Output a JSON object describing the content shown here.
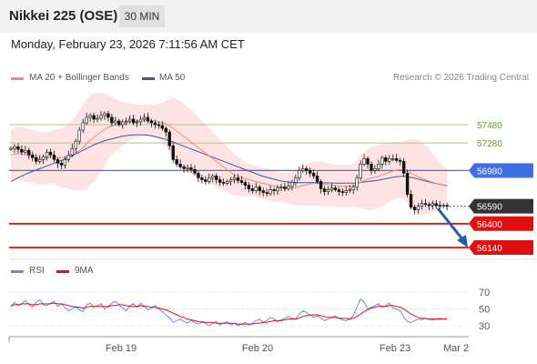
{
  "header": {
    "title": "Nikkei 225 (OSE)",
    "timeframe": "30 MIN",
    "datetime": "Monday, February 23, 2026 7:11:56 AM CET"
  },
  "legend": {
    "ma20": "MA 20 + Bollinger Bands",
    "ma50": "MA 50",
    "credit": "Research © 2026 Trading Central",
    "rsi": "RSI",
    "ma9": "9MA"
  },
  "colors": {
    "ma20": "#f08a80",
    "ma50": "#3a5a9a",
    "bollinger_fill": "#fde0e0",
    "resistance": "#a8cc78",
    "pivot": "#3f6fe0",
    "support": "#e01010",
    "current_price": "#333333",
    "rsi": "#6a8be0",
    "ma9": "#e01010",
    "forecast_arrow": "#2a5aa8"
  },
  "chart_data": [
    {
      "type": "candlestick",
      "title": "Nikkei 225 (OSE)",
      "x_labels": [
        "Feb 19",
        "Feb 20",
        "Feb 23",
        "Mar 2"
      ],
      "levels": [
        {
          "value": 57480,
          "label": "57480",
          "kind": "resistance"
        },
        {
          "value": 57280,
          "label": "57280",
          "kind": "resistance"
        },
        {
          "value": 56980,
          "label": "56980",
          "kind": "pivot"
        },
        {
          "value": 56590,
          "label": "56590",
          "kind": "current"
        },
        {
          "value": 56400,
          "label": "56400",
          "kind": "support"
        },
        {
          "value": 56140,
          "label": "56140",
          "kind": "support"
        }
      ],
      "close": [
        57220,
        57240,
        57210,
        57180,
        57200,
        57150,
        57120,
        57080,
        57100,
        57130,
        57180,
        57150,
        57100,
        57060,
        57040,
        57100,
        57150,
        57220,
        57300,
        57420,
        57500,
        57560,
        57580,
        57540,
        57550,
        57580,
        57600,
        57560,
        57500,
        57520,
        57480,
        57510,
        57520,
        57540,
        57500,
        57510,
        57540,
        57560,
        57520,
        57500,
        57480,
        57470,
        57440,
        57400,
        57250,
        57100,
        57050,
        57020,
        57000,
        57010,
        56990,
        56950,
        56900,
        56880,
        56860,
        56900,
        56920,
        56880,
        56850,
        56840,
        56860,
        56880,
        56900,
        56870,
        56850,
        56820,
        56780,
        56760,
        56800,
        56760,
        56740,
        56730,
        56770,
        56760,
        56790,
        56800,
        56780,
        56810,
        56850,
        56900,
        56980,
        57000,
        56980,
        56950,
        56920,
        56860,
        56780,
        56750,
        56770,
        56790,
        56770,
        56750,
        56740,
        56760,
        56770,
        56800,
        56900,
        57050,
        57110,
        57050,
        56980,
        57000,
        57050,
        57120,
        57080,
        57110,
        57110,
        57090,
        57080,
        56950,
        56720,
        56580,
        56550,
        56590,
        56620,
        56610,
        56600,
        56620,
        56600,
        56590,
        56600,
        56590
      ],
      "ma20": [
        57150,
        57160,
        57165,
        57160,
        57150,
        57140,
        57130,
        57120,
        57115,
        57115,
        57120,
        57125,
        57125,
        57120,
        57120,
        57125,
        57135,
        57150,
        57170,
        57200,
        57230,
        57270,
        57310,
        57340,
        57370,
        57400,
        57430,
        57450,
        57465,
        57475,
        57480,
        57490,
        57500,
        57510,
        57515,
        57520,
        57525,
        57530,
        57530,
        57525,
        57520,
        57510,
        57500,
        57490,
        57470,
        57440,
        57410,
        57380,
        57350,
        57320,
        57290,
        57260,
        57230,
        57200,
        57170,
        57140,
        57110,
        57080,
        57050,
        57020,
        56990,
        56960,
        56935,
        56915,
        56900,
        56890,
        56880,
        56870,
        56860,
        56850,
        56840,
        56830,
        56820,
        56810,
        56805,
        56800,
        56795,
        56790,
        56790,
        56795,
        56805,
        56815,
        56825,
        56835,
        56840,
        56840,
        56835,
        56830,
        56825,
        56820,
        56815,
        56810,
        56810,
        56810,
        56810,
        56815,
        56830,
        56850,
        56870,
        56885,
        56895,
        56905,
        56915,
        56930,
        56945,
        56960,
        56975,
        56985,
        56990,
        56985,
        56970,
        56950,
        56930,
        56910,
        56895,
        56880,
        56865,
        56850,
        56840,
        56830,
        56820,
        56810
      ],
      "ma50": [
        56860,
        56880,
        56900,
        56920,
        56940,
        56955,
        56970,
        56985,
        57000,
        57015,
        57030,
        57045,
        57060,
        57075,
        57090,
        57105,
        57120,
        57140,
        57160,
        57180,
        57200,
        57220,
        57240,
        57260,
        57275,
        57290,
        57305,
        57315,
        57325,
        57335,
        57345,
        57355,
        57360,
        57365,
        57368,
        57370,
        57370,
        57368,
        57365,
        57360,
        57350,
        57340,
        57330,
        57320,
        57305,
        57290,
        57275,
        57260,
        57245,
        57230,
        57215,
        57200,
        57185,
        57170,
        57155,
        57140,
        57125,
        57110,
        57095,
        57080,
        57065,
        57050,
        57035,
        57020,
        57005,
        56990,
        56975,
        56960,
        56945,
        56930,
        56915,
        56905,
        56895,
        56885,
        56875,
        56865,
        56860,
        56855,
        56850,
        56848,
        56848,
        56848,
        56848,
        56848,
        56848,
        56848,
        56847,
        56846,
        56845,
        56844,
        56843,
        56842,
        56842,
        56842,
        56842,
        56843,
        56845,
        56850,
        56855,
        56860,
        56865,
        56870,
        56875,
        56882,
        56890,
        56898,
        56906,
        56912,
        56916,
        56916,
        56912,
        56905,
        56896,
        56886,
        56876,
        56866,
        56856,
        56846,
        56838,
        56830,
        56822,
        56815
      ],
      "bb_upper": [
        57420,
        57440,
        57450,
        57450,
        57440,
        57430,
        57420,
        57410,
        57405,
        57400,
        57400,
        57410,
        57420,
        57430,
        57440,
        57460,
        57490,
        57530,
        57580,
        57640,
        57700,
        57760,
        57800,
        57820,
        57830,
        57830,
        57820,
        57800,
        57780,
        57760,
        57740,
        57730,
        57720,
        57710,
        57705,
        57700,
        57700,
        57700,
        57700,
        57700,
        57700,
        57710,
        57720,
        57740,
        57760,
        57770,
        57760,
        57740,
        57710,
        57680,
        57640,
        57600,
        57560,
        57520,
        57480,
        57440,
        57400,
        57360,
        57320,
        57280,
        57240,
        57200,
        57160,
        57130,
        57100,
        57070,
        57050,
        57040,
        57030,
        57020,
        57010,
        57000,
        56990,
        56980,
        56970,
        56960,
        56955,
        56960,
        56970,
        56990,
        57010,
        57030,
        57050,
        57070,
        57080,
        57080,
        57075,
        57070,
        57060,
        57050,
        57040,
        57040,
        57040,
        57040,
        57040,
        57050,
        57080,
        57130,
        57180,
        57220,
        57240,
        57250,
        57260,
        57270,
        57280,
        57285,
        57290,
        57290,
        57290,
        57300,
        57310,
        57320,
        57320,
        57310,
        57290,
        57260,
        57220,
        57170,
        57120,
        57070,
        57030,
        57000
      ],
      "bb_lower": [
        56880,
        56880,
        56880,
        56870,
        56860,
        56850,
        56840,
        56830,
        56825,
        56830,
        56840,
        56840,
        56830,
        56810,
        56800,
        56790,
        56780,
        56770,
        56760,
        56760,
        56760,
        56780,
        56820,
        56860,
        56910,
        56970,
        57040,
        57100,
        57150,
        57190,
        57220,
        57250,
        57280,
        57310,
        57325,
        57340,
        57350,
        57360,
        57360,
        57350,
        57340,
        57310,
        57280,
        57240,
        57180,
        57110,
        57060,
        57020,
        56990,
        56960,
        56940,
        56920,
        56900,
        56880,
        56860,
        56840,
        56820,
        56800,
        56780,
        56760,
        56740,
        56720,
        56710,
        56700,
        56700,
        56700,
        56700,
        56700,
        56690,
        56680,
        56670,
        56660,
        56650,
        56640,
        56640,
        56640,
        56635,
        56620,
        56610,
        56600,
        56600,
        56600,
        56600,
        56600,
        56600,
        56600,
        56595,
        56590,
        56590,
        56590,
        56590,
        56580,
        56580,
        56580,
        56580,
        56580,
        56580,
        56570,
        56560,
        56550,
        56550,
        56560,
        56570,
        56590,
        56610,
        56635,
        56660,
        56680,
        56690,
        56670,
        56630,
        56580,
        56540,
        56510,
        56500,
        56500,
        56510,
        56530,
        56560,
        56590,
        56610,
        56620
      ]
    },
    {
      "type": "line",
      "series_names": [
        "RSI",
        "9MA"
      ],
      "y_ticks": [
        70,
        50,
        30
      ],
      "ylim": [
        20,
        80
      ],
      "rsi": [
        52,
        58,
        54,
        56,
        60,
        55,
        52,
        58,
        61,
        55,
        54,
        57,
        59,
        53,
        56,
        52,
        48,
        50,
        53,
        49,
        47,
        55,
        57,
        52,
        54,
        56,
        50,
        53,
        57,
        59,
        55,
        51,
        48,
        54,
        56,
        52,
        57,
        53,
        49,
        51,
        54,
        50,
        47,
        43,
        40,
        34,
        36,
        38,
        35,
        33,
        36,
        34,
        32,
        34,
        33,
        30,
        33,
        35,
        31,
        33,
        35,
        31,
        33,
        30,
        32,
        34,
        31,
        33,
        36,
        38,
        34,
        36,
        40,
        38,
        35,
        37,
        39,
        41,
        39,
        38,
        44,
        48,
        46,
        43,
        40,
        42,
        39,
        36,
        38,
        40,
        42,
        39,
        37,
        36,
        38,
        42,
        52,
        62,
        58,
        50,
        52,
        54,
        56,
        52,
        54,
        57,
        51,
        50,
        48,
        40,
        35,
        34,
        36,
        38,
        37,
        39,
        38,
        37,
        38,
        39,
        38,
        39
      ],
      "ma9": [
        54,
        55,
        55,
        56,
        56,
        56,
        55,
        55,
        56,
        56,
        56,
        56,
        57,
        56,
        56,
        55,
        54,
        53,
        52,
        52,
        51,
        52,
        53,
        53,
        53,
        53,
        53,
        53,
        54,
        54,
        55,
        55,
        54,
        53,
        53,
        53,
        54,
        53,
        53,
        52,
        52,
        51,
        50,
        49,
        47,
        45,
        43,
        41,
        40,
        38,
        37,
        36,
        35,
        35,
        34,
        34,
        34,
        33,
        33,
        33,
        33,
        33,
        33,
        32,
        32,
        32,
        32,
        32,
        33,
        33,
        34,
        34,
        35,
        36,
        36,
        36,
        37,
        38,
        38,
        38,
        39,
        41,
        42,
        43,
        43,
        43,
        42,
        41,
        40,
        40,
        40,
        39,
        39,
        39,
        38,
        39,
        41,
        44,
        47,
        49,
        51,
        52,
        53,
        53,
        53,
        54,
        54,
        53,
        52,
        50,
        47,
        44,
        42,
        40,
        39,
        39,
        38,
        38,
        38,
        38,
        38,
        38
      ]
    }
  ]
}
